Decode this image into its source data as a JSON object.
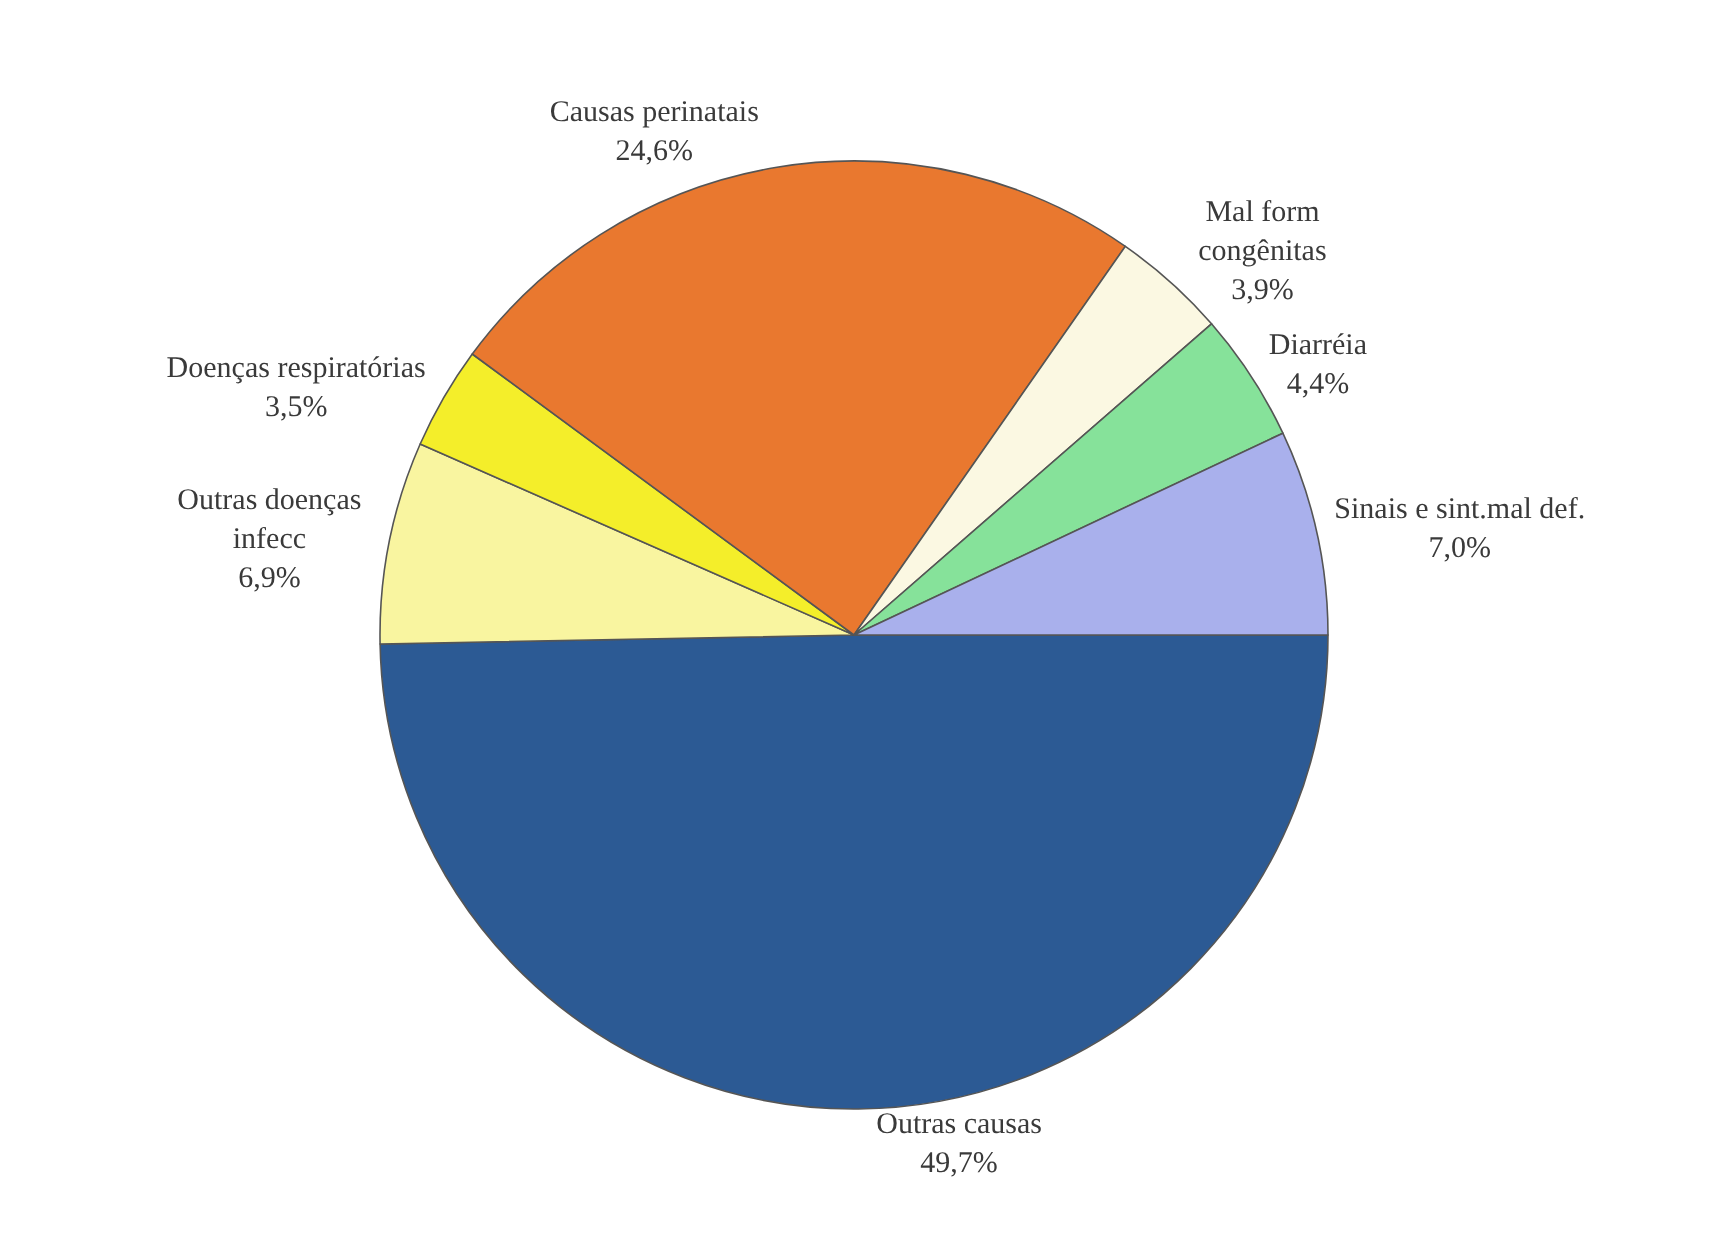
{
  "chart_data": {
    "type": "pie",
    "categories": [
      "Outras causas",
      "Outras doenças\ninfecc",
      "Doenças respiratórias",
      "Causas perinatais",
      "Mal form\ncongênitas",
      "Diarréia",
      "Sinais e sint.mal def."
    ],
    "values": [
      49.7,
      6.9,
      3.5,
      24.6,
      3.9,
      4.4,
      7.0
    ],
    "value_labels": [
      "49,7%",
      "6,9%",
      "3,5%",
      "24,6%",
      "3,9%",
      "4,4%",
      "7,0%"
    ],
    "colors": [
      "#2c5a94",
      "#f9f5a0",
      "#f4ee2a",
      "#e9782f",
      "#fbf8e2",
      "#86e29a",
      "#a9b0ec"
    ]
  }
}
